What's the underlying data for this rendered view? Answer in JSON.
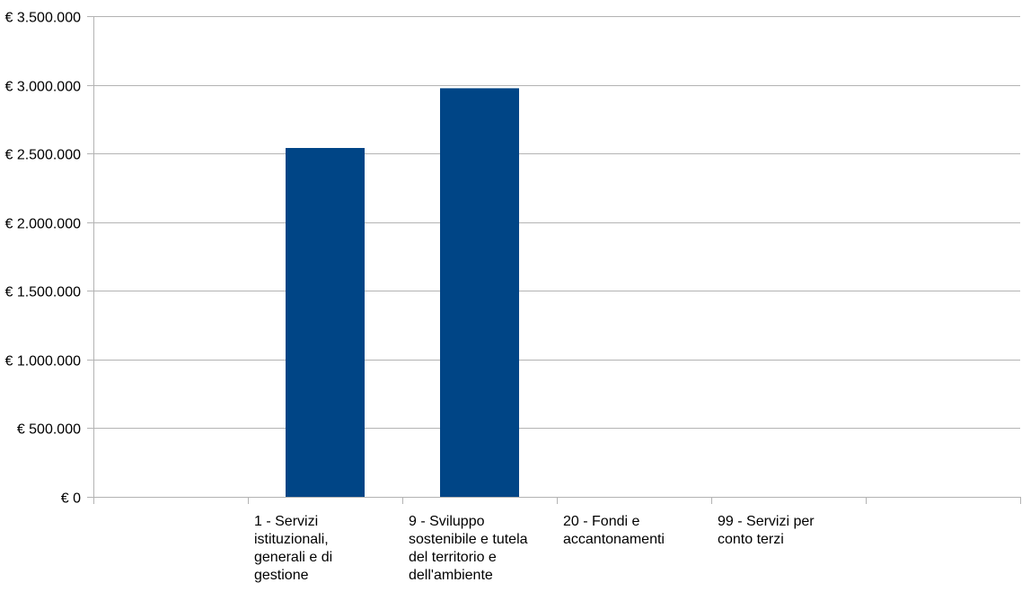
{
  "chart_data": {
    "type": "bar",
    "title": "",
    "xlabel": "",
    "ylabel": "",
    "ylim": [
      0,
      3500000
    ],
    "y_ticks": [
      0,
      500000,
      1000000,
      1500000,
      2000000,
      2500000,
      3000000,
      3500000
    ],
    "y_tick_labels": [
      "€ 0",
      "€ 500.000",
      "€ 1.000.000",
      "€ 1.500.000",
      "€ 2.000.000",
      "€ 2.500.000",
      "€ 3.000.000",
      "€ 3.500.000"
    ],
    "categories": [
      "",
      "1 - Servizi istituzionali, generali e di gestione",
      "9 - Sviluppo sostenibile e tutela del territorio e dell'ambiente",
      "20 - Fondi e accantonamenti",
      "99 - Servizi per conto terzi",
      ""
    ],
    "category_label_lines": [
      [],
      [
        "1 - Servizi",
        "istituzionali,",
        "generali e di",
        "gestione"
      ],
      [
        "9 - Sviluppo",
        "sostenibile e tutela",
        "del territorio e",
        "dell'ambiente"
      ],
      [
        "20 - Fondi e",
        "accantonamenti"
      ],
      [
        "99 - Servizi per",
        "conto terzi"
      ],
      []
    ],
    "values": [
      0,
      2540000,
      2975000,
      0,
      0,
      0
    ],
    "grid": true,
    "legend": "none",
    "colors": {
      "bar": "#004586",
      "grid": "#b3b3b3",
      "axis": "#b3b3b3"
    }
  }
}
